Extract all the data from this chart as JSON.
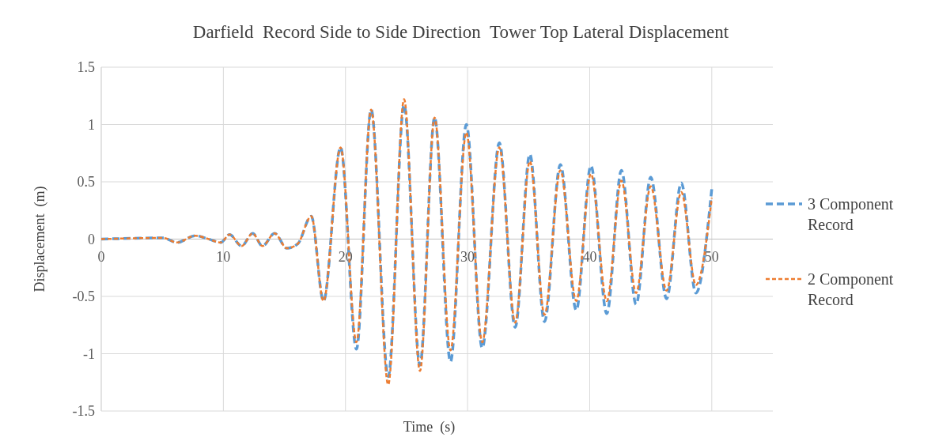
{
  "chart_data": {
    "type": "line",
    "title": "Darfield  Record Side to Side Direction  Tower Top Lateral Displacement",
    "xlabel": "Time  (s)",
    "ylabel": "Displacement  (m)",
    "x": [
      0,
      5.1,
      6.2,
      7.7,
      8.8,
      9.8,
      10.5,
      11.5,
      12.4,
      13.2,
      14.2,
      15.2,
      16.1,
      17.2,
      18.2,
      19.6,
      20.9,
      22.1,
      23.5,
      24.8,
      26.1,
      27.3,
      28.6,
      29.9,
      31.2,
      32.6,
      33.9,
      35.1,
      36.3,
      37.6,
      38.9,
      40.1,
      41.4,
      42.6,
      43.8,
      45.0,
      46.3,
      47.5,
      48.7,
      50
    ],
    "series": [
      {
        "name": "3 Component Record",
        "color": "#5b9bd5",
        "line_style": "dashed",
        "values": [
          0,
          0.01,
          -0.03,
          0.03,
          0,
          -0.03,
          0.04,
          -0.06,
          0.05,
          -0.06,
          0.05,
          -0.08,
          -0.04,
          0.2,
          -0.54,
          0.8,
          -0.96,
          1.13,
          -1.2,
          1.17,
          -1.1,
          1.06,
          -1.07,
          1.0,
          -0.95,
          0.84,
          -0.77,
          0.74,
          -0.72,
          0.65,
          -0.62,
          0.64,
          -0.65,
          0.6,
          -0.57,
          0.54,
          -0.52,
          0.49,
          -0.47,
          0.44
        ]
      },
      {
        "name": "2 Component Record",
        "color": "#ed7d31",
        "line_style": "dashed",
        "values": [
          0,
          0.01,
          -0.03,
          0.03,
          0,
          -0.03,
          0.04,
          -0.06,
          0.05,
          -0.06,
          0.05,
          -0.08,
          -0.04,
          0.2,
          -0.54,
          0.8,
          -0.9,
          1.13,
          -1.27,
          1.22,
          -1.15,
          1.06,
          -0.97,
          0.93,
          -0.9,
          0.8,
          -0.73,
          0.68,
          -0.66,
          0.6,
          -0.54,
          0.57,
          -0.54,
          0.51,
          -0.47,
          0.46,
          -0.45,
          0.41,
          -0.4,
          0.36
        ]
      }
    ],
    "xlim": [
      0,
      55
    ],
    "xticks": [
      0,
      10,
      20,
      30,
      40,
      50
    ],
    "ylim": [
      -1.5,
      1.5
    ],
    "yticks": [
      -1.5,
      -1,
      -0.5,
      0,
      0.5,
      1,
      1.5
    ],
    "grid": true,
    "legend": "right",
    "marker": "none"
  }
}
